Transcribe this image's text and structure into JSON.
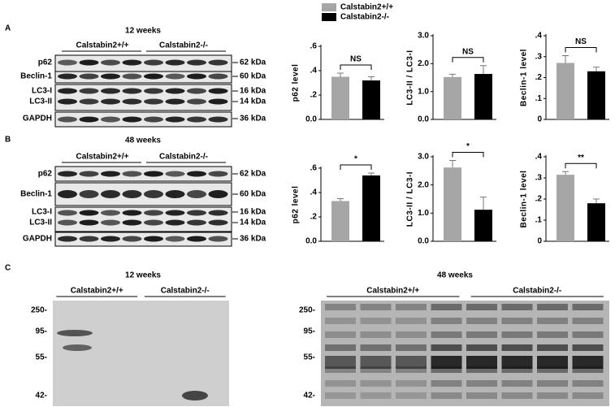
{
  "legend": [
    {
      "name": "Calstabin2+/+",
      "color": "#a6a6a6"
    },
    {
      "name": "Calstabin2-/-",
      "color": "#000000"
    }
  ],
  "chart_data": [
    {
      "type": "bar",
      "ylabel": "p62 level",
      "values": [
        0.35,
        0.32
      ],
      "errors": [
        0.03,
        0.03
      ],
      "colors": [
        "#a6a6a6",
        "#000000"
      ],
      "annotation": "NS",
      "ylim": [
        0,
        0.6
      ],
      "yticks": [
        {
          "value": 0,
          "label": "0.0"
        },
        {
          "value": 0.2,
          "label": ".2"
        },
        {
          "value": 0.4,
          "label": ".4"
        },
        {
          "value": 0.6,
          "label": ".6"
        }
      ]
    },
    {
      "type": "bar",
      "ylabel": "LC3-II / LC3-I",
      "values": [
        1.52,
        1.63
      ],
      "errors": [
        0.1,
        0.3
      ],
      "colors": [
        "#a6a6a6",
        "#000000"
      ],
      "annotation": "NS",
      "ylim": [
        0,
        3
      ],
      "yticks": [
        {
          "value": 0,
          "label": "0.0"
        },
        {
          "value": 1,
          "label": "1.0"
        },
        {
          "value": 2,
          "label": "2.0"
        },
        {
          "value": 3,
          "label": "3.0"
        }
      ]
    },
    {
      "type": "bar",
      "ylabel": "Beclin-1 level",
      "values": [
        0.27,
        0.23
      ],
      "errors": [
        0.035,
        0.02
      ],
      "colors": [
        "#a6a6a6",
        "#000000"
      ],
      "annotation": "NS",
      "ylim": [
        0,
        0.4
      ],
      "yticks": [
        0,
        {
          "value": 0.1,
          "label": ".1"
        },
        {
          "value": 0.2,
          "label": ".2"
        },
        {
          "value": 0.3,
          "label": ".3"
        },
        {
          "value": 0.4,
          "label": ".4"
        }
      ]
    },
    {
      "type": "bar",
      "ylabel": "p62 level",
      "values": [
        0.33,
        0.54
      ],
      "errors": [
        0.02,
        0.02
      ],
      "colors": [
        "#a6a6a6",
        "#000000"
      ],
      "annotation": "*",
      "ylim": [
        0,
        0.6
      ],
      "yticks": [
        {
          "value": 0,
          "label": "0.0"
        },
        {
          "value": 0.2,
          "label": ".2"
        },
        {
          "value": 0.4,
          "label": ".4"
        },
        {
          "value": 0.6,
          "label": ".6"
        }
      ]
    },
    {
      "type": "bar",
      "ylabel": "LC3-II / LC3-I",
      "values": [
        2.62,
        1.12
      ],
      "errors": [
        0.25,
        0.45
      ],
      "colors": [
        "#a6a6a6",
        "#000000"
      ],
      "annotation": "*",
      "ylim": [
        0,
        3
      ],
      "yticks": [
        {
          "value": 0,
          "label": "0.0"
        },
        {
          "value": 1,
          "label": "1.0"
        },
        {
          "value": 2,
          "label": "2.0"
        },
        {
          "value": 3,
          "label": "3.0"
        }
      ]
    },
    {
      "type": "bar",
      "ylabel": "Beclin-1 level",
      "values": [
        0.315,
        0.18
      ],
      "errors": [
        0.015,
        0.02
      ],
      "colors": [
        "#a6a6a6",
        "#000000"
      ],
      "annotation": "**",
      "ylim": [
        0,
        0.4
      ],
      "yticks": [
        0,
        {
          "value": 0.1,
          "label": ".1"
        },
        {
          "value": 0.2,
          "label": ".2"
        },
        {
          "value": 0.3,
          "label": ".3"
        },
        {
          "value": 0.4,
          "label": ".4"
        }
      ]
    }
  ],
  "blots": [
    {
      "letter": "A",
      "title": "12 weeks",
      "groups": [
        "Calstabin2+/+",
        "Calstabin2-/-"
      ],
      "rows": [
        "p62",
        "Beclin-1",
        "LC3-I",
        "LC3-II",
        "GAPDH"
      ],
      "sizes": [
        "62 kDa",
        "60 kDa",
        "16 kDa",
        "14 kDa",
        "36 kDa"
      ]
    },
    {
      "letter": "B",
      "title": "48 weeks",
      "groups": [
        "Calstabin2+/+",
        "Calstabin2-/-"
      ],
      "rows": [
        "p62",
        "Beclin-1",
        "LC3-I",
        "LC3-II",
        "GAPDH"
      ],
      "sizes": [
        "62 kDa",
        "60 kDa",
        "16 kDa",
        "14 kDa",
        "36 kDa"
      ]
    }
  ],
  "panel_c": {
    "letter": "C",
    "blots": [
      {
        "title": "12 weeks",
        "groups": [
          "Calstabin2+/+",
          "Calstabin2-/-"
        ],
        "markers": [
          "250-",
          "95-",
          "55-",
          "42-"
        ]
      },
      {
        "title": "48 weeks",
        "groups": [
          "Calstabin2+/+",
          "Calstabin2-/-"
        ],
        "markers": [
          "250-",
          "95-",
          "55-",
          "42-"
        ]
      }
    ]
  }
}
